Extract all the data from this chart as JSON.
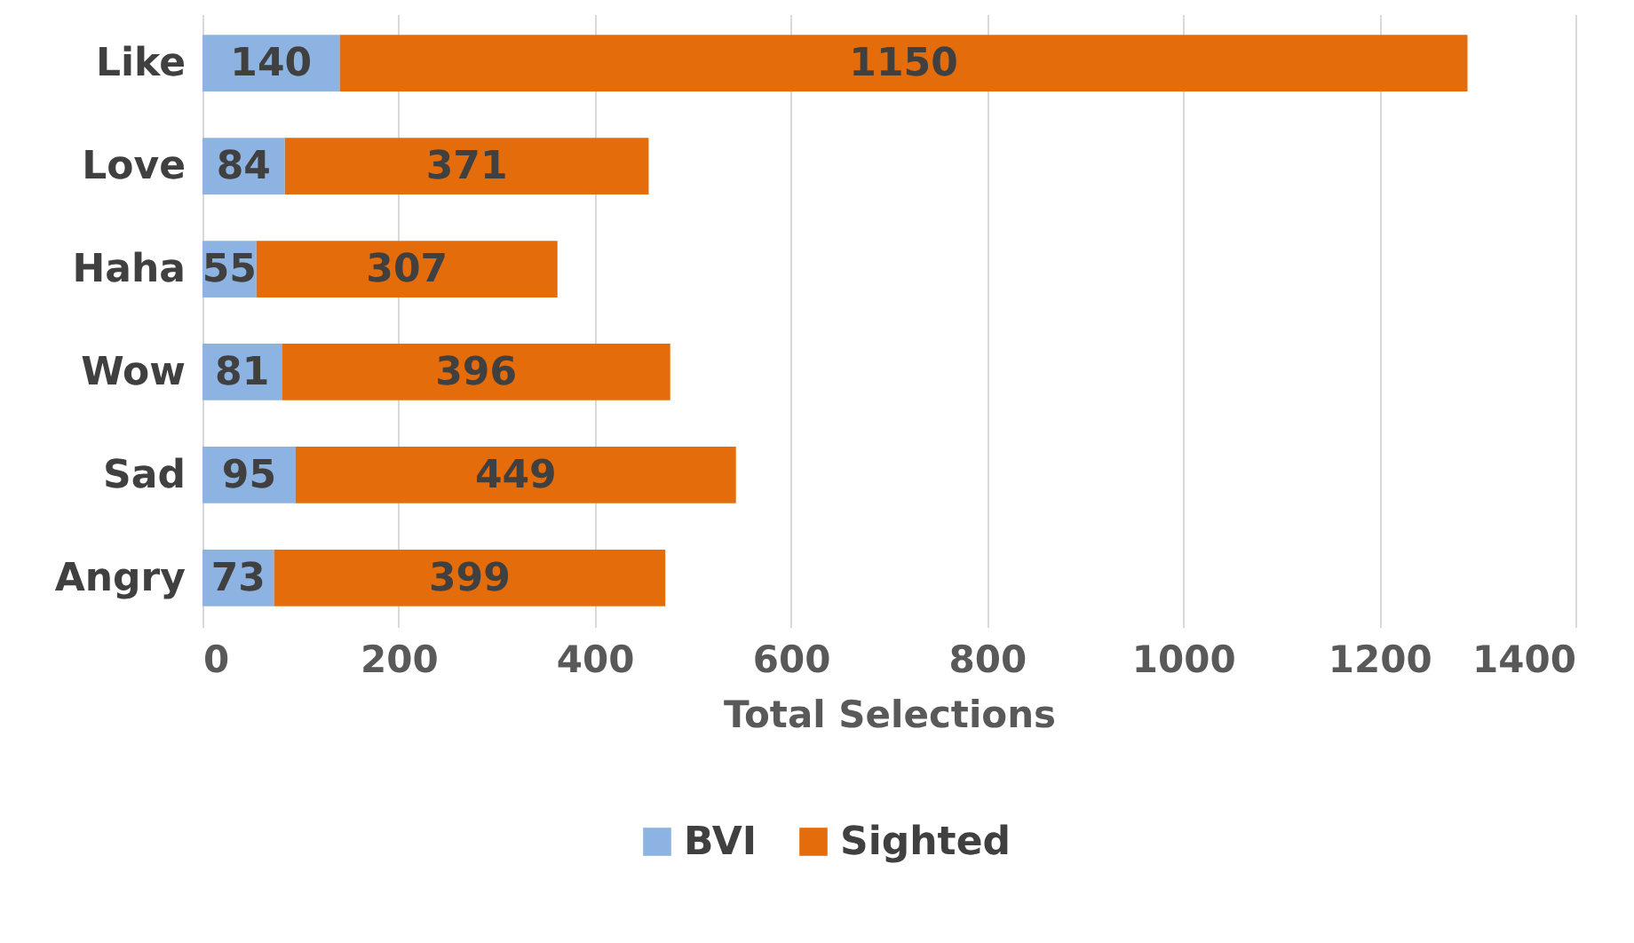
{
  "chart_data": {
    "type": "bar",
    "orientation": "horizontal",
    "stacked": true,
    "xlabel": "Total Selections",
    "categories": [
      "Like",
      "Love",
      "Haha",
      "Wow",
      "Sad",
      "Angry"
    ],
    "series": [
      {
        "name": "BVI",
        "color": "#8db3e2",
        "values": [
          140,
          84,
          55,
          81,
          95,
          73
        ]
      },
      {
        "name": "Sighted",
        "color": "#e46c0a",
        "values": [
          1150,
          371,
          307,
          396,
          449,
          399
        ]
      }
    ],
    "xlim": [
      0,
      1400
    ],
    "xticks": [
      0,
      200,
      400,
      600,
      800,
      {
        "value": 1000,
        "label": "1000"
      },
      {
        "value": 1200,
        "label": "1200"
      },
      {
        "value": 1400,
        "label": "1400"
      }
    ],
    "grid": "x",
    "legend": "bottom",
    "data_labels": true
  }
}
